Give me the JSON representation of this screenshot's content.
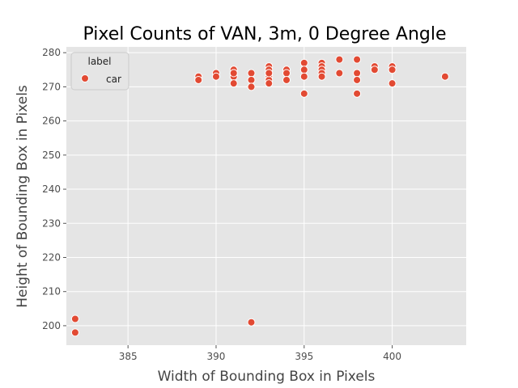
{
  "chart_data": {
    "type": "scatter",
    "title": "Pixel Counts of VAN, 3m, 0 Degree Angle",
    "xlabel": "Width of Bounding Box in Pixels",
    "ylabel": "Height of Bounding Box in Pixels",
    "xlim": [
      381.5,
      404.2
    ],
    "ylim": [
      194.3,
      281.7
    ],
    "xticks": [
      385,
      390,
      395,
      400
    ],
    "yticks": [
      200,
      210,
      220,
      230,
      240,
      250,
      260,
      270,
      280
    ],
    "grid": true,
    "legend": {
      "title": "label",
      "position": "top-left"
    },
    "series": [
      {
        "name": "car",
        "color": "#E24A33",
        "x": [
          382,
          382,
          389,
          389,
          390,
          390,
          391,
          391,
          391,
          391,
          391,
          392,
          392,
          392,
          392,
          393,
          393,
          393,
          393,
          393,
          393,
          393,
          394,
          394,
          394,
          395,
          395,
          395,
          395,
          396,
          396,
          396,
          396,
          396,
          397,
          397,
          398,
          398,
          398,
          398,
          399,
          399,
          400,
          400,
          400,
          403
        ],
        "y": [
          202,
          198,
          273,
          272,
          274,
          273,
          275,
          274,
          273,
          271,
          274,
          274,
          272,
          270,
          201,
          276,
          275,
          274,
          273,
          272,
          271,
          274,
          275,
          274,
          272,
          277,
          275,
          273,
          268,
          277,
          276,
          275,
          274,
          273,
          278,
          274,
          278,
          274,
          272,
          268,
          276,
          275,
          276,
          275,
          271,
          273
        ]
      }
    ]
  }
}
